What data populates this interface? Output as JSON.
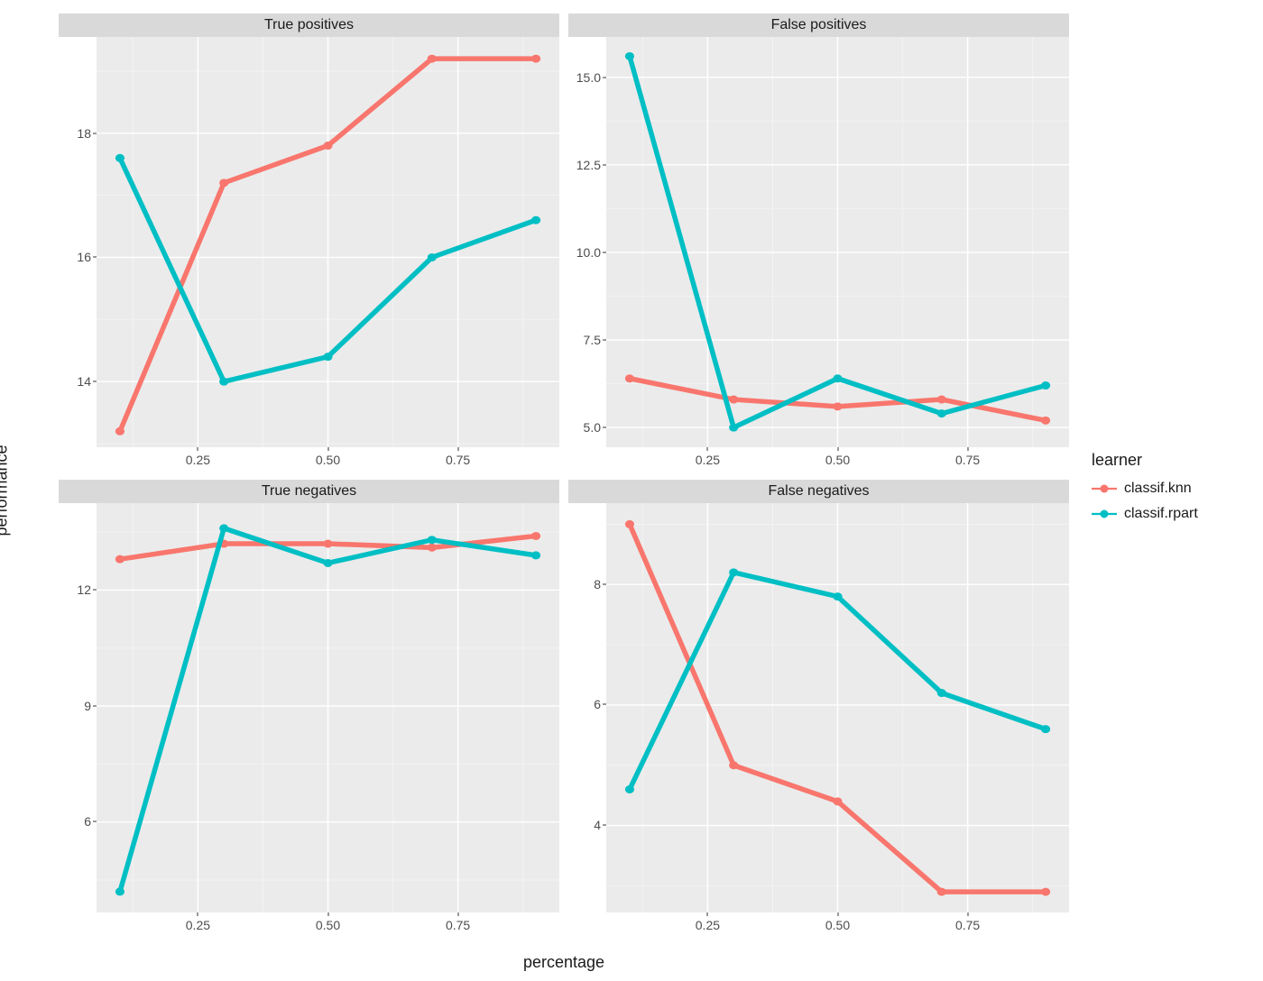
{
  "axis_labels": {
    "x": "percentage",
    "y": "performance"
  },
  "legend": {
    "title": "learner",
    "items": [
      {
        "label": "classif.knn",
        "color": "#f8766d"
      },
      {
        "label": "classif.rpart",
        "color": "#00bfc4"
      }
    ]
  },
  "style": {
    "panel_bg": "#ebebeb",
    "grid_major": "#ffffff",
    "grid_minor": "#f3f3f3",
    "strip_bg": "#d9d9d9",
    "text_color": "#1a1a1a",
    "tick_color": "#4d4d4d",
    "line_width": 2.2,
    "point_radius": 4.5,
    "title_fontsize": 18,
    "strip_fontsize": 16,
    "tick_fontsize": 14,
    "legend_fontsize": 16
  },
  "x": {
    "lim": [
      0.055,
      0.945
    ],
    "ticks": [
      0.25,
      0.5,
      0.75
    ],
    "tick_labels": [
      "0.25",
      "0.50",
      "0.75"
    ],
    "minor": [
      0.125,
      0.375,
      0.625,
      0.875
    ],
    "values": [
      0.1,
      0.3,
      0.5,
      0.7,
      0.9
    ]
  },
  "panels": [
    {
      "title": "True positives",
      "ylim": [
        12.95,
        19.55
      ],
      "yticks": [
        14,
        16,
        18
      ],
      "ytick_labels": [
        "14",
        "16",
        "18"
      ],
      "yminor": [
        13,
        15,
        17,
        19
      ],
      "series": [
        {
          "learner": "classif.knn",
          "color": "#f8766d",
          "y": [
            13.2,
            17.2,
            17.8,
            19.2,
            19.2
          ]
        },
        {
          "learner": "classif.rpart",
          "color": "#00bfc4",
          "y": [
            17.6,
            14.0,
            14.4,
            16.0,
            16.6
          ]
        }
      ]
    },
    {
      "title": "False positives",
      "ylim": [
        4.45,
        16.15
      ],
      "yticks": [
        5.0,
        7.5,
        10.0,
        12.5,
        15.0
      ],
      "ytick_labels": [
        "5.0",
        "7.5",
        "10.0",
        "12.5",
        "15.0"
      ],
      "yminor": [
        6.25,
        8.75,
        11.25,
        13.75
      ],
      "series": [
        {
          "learner": "classif.knn",
          "color": "#f8766d",
          "y": [
            6.4,
            5.8,
            5.6,
            5.8,
            5.2
          ]
        },
        {
          "learner": "classif.rpart",
          "color": "#00bfc4",
          "y": [
            15.6,
            5.0,
            6.4,
            5.4,
            6.2
          ]
        }
      ]
    },
    {
      "title": "True negatives",
      "ylim": [
        3.65,
        14.25
      ],
      "yticks": [
        6,
        9,
        12
      ],
      "ytick_labels": [
        "6",
        "9",
        "12"
      ],
      "yminor": [
        4.5,
        7.5,
        10.5,
        13.5
      ],
      "series": [
        {
          "learner": "classif.knn",
          "color": "#f8766d",
          "y": [
            12.8,
            13.2,
            13.2,
            13.1,
            13.4
          ]
        },
        {
          "learner": "classif.rpart",
          "color": "#00bfc4",
          "y": [
            4.2,
            13.6,
            12.7,
            13.3,
            12.9
          ]
        }
      ]
    },
    {
      "title": "False negatives",
      "ylim": [
        2.55,
        9.35
      ],
      "yticks": [
        4,
        6,
        8
      ],
      "ytick_labels": [
        "4",
        "6",
        "8"
      ],
      "yminor": [
        3,
        5,
        7,
        9
      ],
      "series": [
        {
          "learner": "classif.knn",
          "color": "#f8766d",
          "y": [
            9.0,
            5.0,
            4.4,
            2.9,
            2.9
          ]
        },
        {
          "learner": "classif.rpart",
          "color": "#00bfc4",
          "y": [
            4.6,
            8.2,
            7.8,
            6.2,
            5.6
          ]
        }
      ]
    }
  ]
}
